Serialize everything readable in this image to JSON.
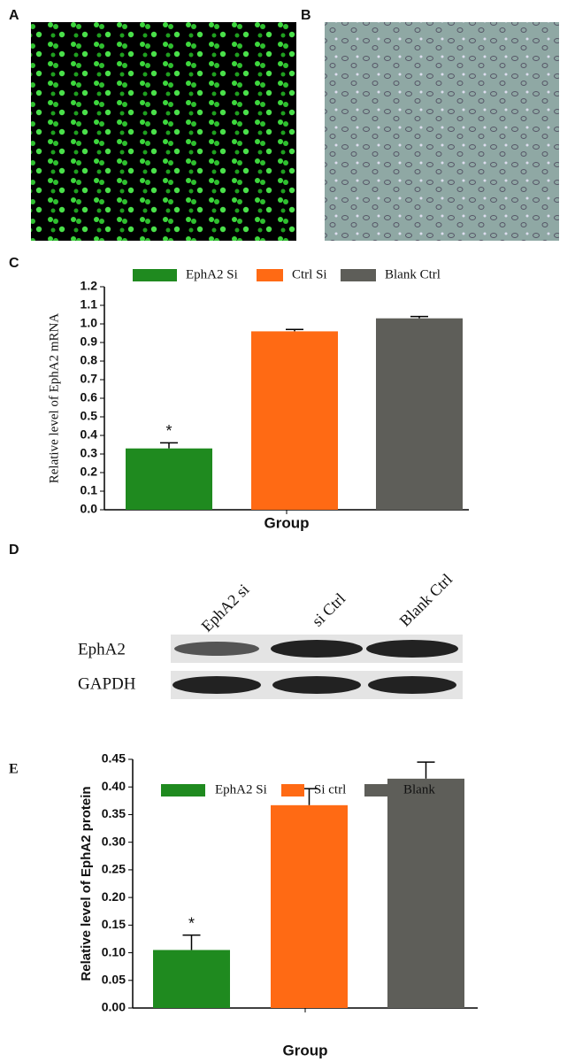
{
  "panel_labels": [
    "A",
    "B",
    "C",
    "D",
    "E"
  ],
  "blot": {
    "lanes": [
      "EphA2 si",
      "si Ctrl",
      "Blank Ctrl"
    ],
    "rows": [
      "EphA2",
      "GAPDH"
    ]
  },
  "chart_data": [
    {
      "type": "bar",
      "ylabel": "Relative level of EphA2 mRNA",
      "xlabel": "Group",
      "categories": [
        "EphA2 Si",
        "Ctrl Si",
        "Blank Ctrl"
      ],
      "values": [
        0.33,
        0.96,
        1.03
      ],
      "errors": [
        0.03,
        0.01,
        0.01
      ],
      "colors": [
        "#1f8a1f",
        "#ff6a14",
        "#5e5e59"
      ],
      "annotation": "*",
      "ylim": [
        0,
        1.2
      ],
      "yticks": [
        {
          "value": 0,
          "label": "0.0"
        },
        0.1,
        0.2,
        0.3,
        0.4,
        0.5,
        0.6,
        0.7,
        0.8,
        0.9,
        {
          "value": 1,
          "label": "1.0"
        },
        1.1,
        1.2
      ]
    },
    {
      "type": "bar",
      "ylabel": "Relative level of EphA2 protein",
      "xlabel": "Group",
      "categories": [
        "EphA2 Si",
        "Si ctrl",
        "Blank"
      ],
      "values": [
        0.105,
        0.367,
        0.415
      ],
      "errors": [
        0.027,
        0.03,
        0.03
      ],
      "colors": [
        "#1f8a1f",
        "#ff6a14",
        "#5e5e59"
      ],
      "annotation": "*",
      "ylim": [
        0,
        0.45
      ],
      "yticks": [
        {
          "value": 0,
          "label": "0.00"
        },
        0.05,
        {
          "value": 0.1,
          "label": "0.10"
        },
        0.15,
        {
          "value": 0.2,
          "label": "0.20"
        },
        0.25,
        {
          "value": 0.3,
          "label": "0.30"
        },
        0.35,
        {
          "value": 0.4,
          "label": "0.40"
        },
        0.45
      ]
    }
  ]
}
